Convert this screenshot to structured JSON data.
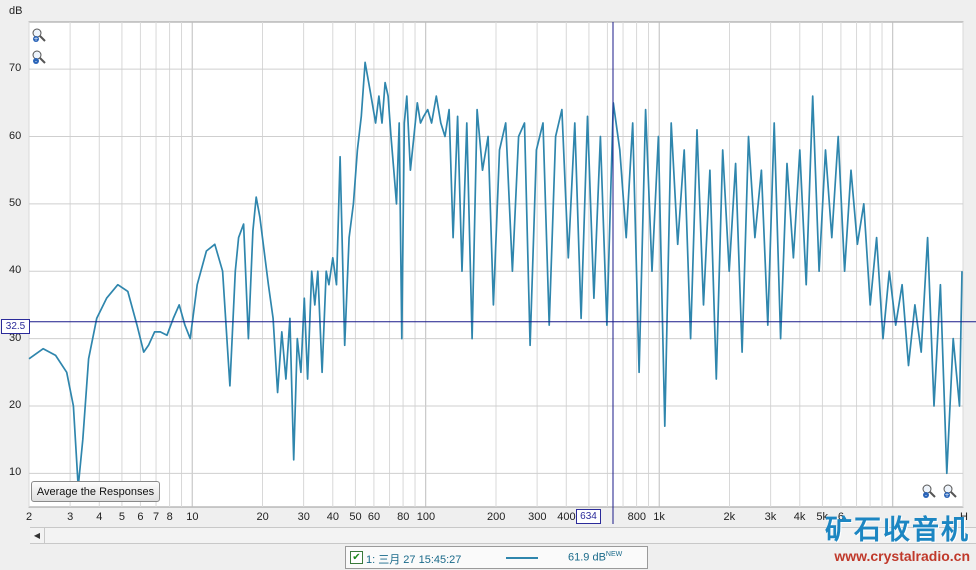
{
  "chart_data": {
    "type": "line",
    "ylabel": "dB",
    "xlabel": "",
    "x_scale": "log",
    "xlim": [
      2,
      20000
    ],
    "ylim": [
      5,
      77
    ],
    "y_ticks": [
      10,
      20,
      30,
      40,
      50,
      60,
      70
    ],
    "x_ticks": [
      "2",
      "3",
      "4",
      "5",
      "6",
      "7",
      "8",
      "10",
      "20",
      "30",
      "40",
      "50",
      "60",
      "80",
      "100",
      "200",
      "300",
      "400",
      "800",
      "1k",
      "2k",
      "3k",
      "4k",
      "5k",
      "6",
      "H"
    ],
    "x_tick_values": [
      2,
      3,
      4,
      5,
      6,
      7,
      8,
      10,
      20,
      30,
      40,
      50,
      60,
      80,
      100,
      200,
      300,
      400,
      800,
      1000,
      2000,
      3000,
      4000,
      5000,
      6000,
      20000
    ],
    "grid": true,
    "line_color": "#2f86ad",
    "cursor": {
      "y_label": "32.5",
      "x_label": "634",
      "y": 32.5,
      "x": 634
    },
    "series": [
      {
        "name": "1: 三月 27 15:45:27",
        "x": [
          2,
          2.3,
          2.6,
          2.9,
          3.1,
          3.25,
          3.4,
          3.6,
          3.9,
          4.3,
          4.8,
          5.3,
          5.8,
          6.2,
          6.5,
          6.9,
          7.3,
          7.8,
          8.3,
          8.8,
          9.3,
          9.8,
          10.5,
          11.5,
          12.5,
          13.5,
          14.5,
          15.3,
          15.8,
          16.6,
          17.4,
          18.2,
          18.8,
          19.5,
          20.5,
          21.2,
          22.2,
          23.2,
          24.2,
          25.2,
          26.2,
          27.2,
          28.2,
          29.2,
          30.2,
          31.2,
          32.5,
          33.5,
          34.5,
          36,
          37.5,
          38.5,
          40,
          41.5,
          43,
          45,
          47,
          49,
          51,
          53,
          55,
          57,
          59,
          61,
          63,
          65,
          67,
          69,
          71,
          73,
          75,
          77,
          79,
          81,
          83,
          86,
          89,
          92,
          95,
          98,
          102,
          106,
          111,
          116,
          121,
          126,
          131,
          137,
          143,
          150,
          158,
          166,
          175,
          185,
          195,
          207,
          220,
          235,
          250,
          265,
          280,
          298,
          318,
          338,
          360,
          383,
          408,
          435,
          463,
          493,
          525,
          560,
          597,
          636,
          678,
          722,
          770,
          820,
          874,
          931,
          992,
          1057,
          1126,
          1200,
          1279,
          1363,
          1452,
          1547,
          1648,
          1756,
          1871,
          1994,
          2125,
          2264,
          2412,
          2570,
          2738,
          2917,
          3108,
          3311,
          3527,
          3757,
          4002,
          4263,
          4541,
          4837,
          5152,
          5487,
          5844,
          6224,
          6629,
          7060,
          7519,
          8008,
          8529,
          9083,
          9673,
          10301,
          10970,
          11682,
          12441,
          13249,
          14110,
          15027,
          16003,
          17043,
          18150,
          19330,
          19800
        ],
        "y": [
          27,
          28.5,
          27.5,
          25,
          20,
          8,
          15,
          27,
          33,
          36,
          38,
          37,
          32,
          28,
          29,
          31,
          31,
          30.5,
          33,
          35,
          32,
          30,
          38,
          43,
          44,
          40,
          23,
          40,
          45,
          47,
          30,
          46,
          51,
          48,
          42,
          38,
          33,
          22,
          31,
          24,
          33,
          12,
          30,
          25,
          36,
          24,
          40,
          35,
          40,
          25,
          40,
          38,
          42,
          38,
          57,
          29,
          45,
          50,
          58,
          63,
          71,
          68,
          65,
          62,
          66,
          62,
          68,
          66,
          60,
          55,
          50,
          62,
          30,
          62,
          66,
          55,
          60,
          65,
          62,
          63,
          64,
          62,
          66,
          62,
          60,
          64,
          45,
          63,
          40,
          62,
          30,
          64,
          55,
          60,
          35,
          58,
          62,
          40,
          60,
          62,
          29,
          58,
          62,
          32,
          60,
          64,
          42,
          62,
          33,
          63,
          36,
          60,
          32,
          65,
          58,
          45,
          62,
          25,
          64,
          40,
          60,
          17,
          62,
          44,
          58,
          30,
          61,
          35,
          55,
          24,
          58,
          40,
          56,
          28,
          60,
          45,
          55,
          32,
          62,
          30,
          56,
          42,
          58,
          38,
          66,
          40,
          58,
          45,
          60,
          40,
          55,
          44,
          50,
          35,
          45,
          30,
          40,
          32,
          38,
          26,
          35,
          28,
          45,
          20,
          38,
          10,
          30,
          20,
          40
        ]
      }
    ]
  },
  "buttons": {
    "average": "Average the Responses"
  },
  "legend": {
    "label": "1: 三月 27 15:45:27",
    "value": "61.9 dB",
    "badge": "NEW",
    "checked": true
  },
  "watermark": {
    "title": "矿石收音机",
    "url": "www.crystalradio.cn"
  },
  "icons": [
    "zoom-in-icon",
    "zoom-out-icon",
    "scroll-left-icon",
    "checkbox-icon"
  ]
}
